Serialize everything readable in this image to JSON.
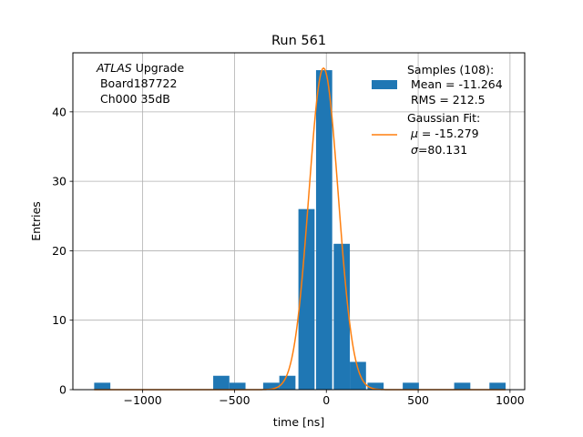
{
  "chart_data": {
    "type": "bar",
    "title": "Run 561",
    "xlabel": "time [ns]",
    "ylabel": "Entries",
    "xlim": [
      -1380,
      1080
    ],
    "ylim": [
      0,
      48.5
    ],
    "grid": true,
    "x_ticks": [
      -1000,
      -500,
      0,
      500,
      1000
    ],
    "x_tick_labels": [
      "−1000",
      "−500",
      "0",
      "500",
      "1000"
    ],
    "y_ticks": [
      0,
      10,
      20,
      30,
      40
    ],
    "y_tick_labels": [
      "0",
      "10",
      "20",
      "30",
      "40"
    ],
    "annotation": {
      "line1_italic": "ATLAS",
      "line1_rest": " Upgrade",
      "line2": " Board187722",
      "line3": " Ch000 35dB"
    },
    "legend": {
      "position": "top-right",
      "histogram_lines": [
        "Samples (108):",
        " Mean = -11.264",
        " RMS = 212.5"
      ],
      "fit_line1": "Gaussian Fit:",
      "fit_mu_symbol": "μ",
      "fit_mu_rest": " = -15.279",
      "fit_sigma_symbol": "σ",
      "fit_sigma_rest": "=80.131"
    },
    "histogram": {
      "color": "#1f77b4",
      "bin_width": 88,
      "bins": [
        {
          "x0": -1264,
          "count": 1
        },
        {
          "x0": -616,
          "count": 2
        },
        {
          "x0": -528,
          "count": 1
        },
        {
          "x0": -344,
          "count": 1
        },
        {
          "x0": -256,
          "count": 2
        },
        {
          "x0": -152,
          "count": 26
        },
        {
          "x0": -56,
          "count": 46
        },
        {
          "x0": 40,
          "count": 21
        },
        {
          "x0": 128,
          "count": 4
        },
        {
          "x0": 224,
          "count": 1
        },
        {
          "x0": 416,
          "count": 1
        },
        {
          "x0": 696,
          "count": 1
        },
        {
          "x0": 888,
          "count": 1
        }
      ]
    },
    "gaussian_fit": {
      "color": "#ff7f0e",
      "amplitude": 46.3,
      "mu": -15.279,
      "sigma": 80.131,
      "x_range": [
        -1264,
        976
      ]
    }
  }
}
